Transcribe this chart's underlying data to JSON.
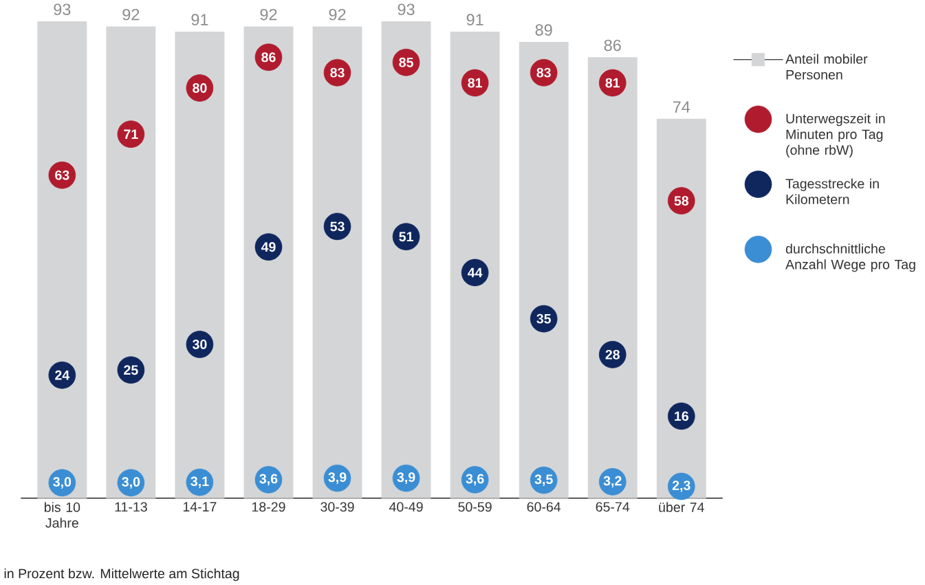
{
  "chart_data": {
    "type": "bar",
    "categories": [
      "bis 10 Jahre",
      "11-13",
      "14-17",
      "18-29",
      "30-39",
      "40-49",
      "50-59",
      "60-64",
      "65-74",
      "über 74"
    ],
    "series": [
      {
        "name": "Anteil mobiler Personen",
        "color": "#d4d5d7",
        "values": [
          93,
          92,
          91,
          92,
          92,
          93,
          91,
          89,
          86,
          74
        ],
        "value_labels": [
          "93",
          "92",
          "91",
          "92",
          "92",
          "93",
          "91",
          "89",
          "86",
          "74"
        ]
      },
      {
        "name": "Unterwegszeit in Minuten pro Tag (ohne rbW)",
        "type": "scatter",
        "color": "#b01c2e",
        "values": [
          63,
          71,
          80,
          86,
          83,
          85,
          81,
          83,
          81,
          58
        ],
        "value_labels": [
          "63",
          "71",
          "80",
          "86",
          "83",
          "85",
          "81",
          "83",
          "81",
          "58"
        ]
      },
      {
        "name": "Tagesstrecke in Kilometern",
        "type": "scatter",
        "color": "#10275e",
        "values": [
          24,
          25,
          30,
          49,
          53,
          51,
          44,
          35,
          28,
          16
        ],
        "value_labels": [
          "24",
          "25",
          "30",
          "49",
          "53",
          "51",
          "44",
          "35",
          "28",
          "16"
        ]
      },
      {
        "name": "durchschnittliche Anzahl Wege pro Tag",
        "type": "scatter",
        "color": "#3b8ed4",
        "values": [
          3.0,
          3.0,
          3.1,
          3.6,
          3.9,
          3.9,
          3.6,
          3.5,
          3.2,
          2.3
        ],
        "value_labels": [
          "3,0",
          "3,0",
          "3,1",
          "3,6",
          "3,9",
          "3,9",
          "3,6",
          "3,5",
          "3,2",
          "2,3"
        ]
      }
    ],
    "marker": "circle",
    "legend": "right",
    "tick_labels": "x",
    "annotations": [
      "in Prozent bzw. Mittelwerte am Stichtag"
    ]
  }
}
